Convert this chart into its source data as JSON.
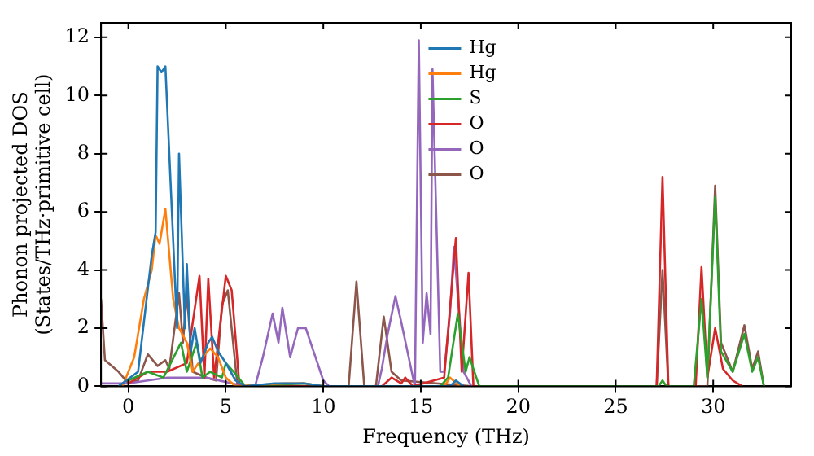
{
  "chart_data": {
    "type": "line",
    "xlabel": "Frequency (THz)",
    "ylabel": "Phonon projected DOS\n(States/THz·primitive cell)",
    "xlim": [
      -1.4,
      34
    ],
    "ylim": [
      0,
      12.5
    ],
    "xticks": [
      0,
      5,
      10,
      15,
      20,
      25,
      30
    ],
    "yticks": [
      0,
      2,
      4,
      6,
      8,
      10,
      12
    ],
    "grid": false,
    "legend": "top center",
    "line_style": "solid",
    "marker": "none",
    "series": [
      {
        "name": "Hg",
        "color": "#1f77b4",
        "x": [
          -0.5,
          0.5,
          1.2,
          1.4,
          1.5,
          1.7,
          1.8,
          1.9,
          2.3,
          2.5,
          2.6,
          2.9,
          3.0,
          3.2,
          3.4,
          3.7,
          4.1,
          4.3,
          4.6,
          5.0,
          5.5,
          6.0,
          7.5,
          9.0,
          10.0,
          16.5,
          16.8,
          17.2
        ],
        "values": [
          0,
          0.5,
          4.5,
          5.3,
          11,
          10.8,
          10.9,
          11,
          5,
          2,
          8,
          2,
          4.2,
          1.2,
          2,
          0.8,
          1.5,
          1.7,
          1.2,
          0.8,
          0.2,
          0,
          0.1,
          0.1,
          0,
          0,
          0.2,
          0
        ]
      },
      {
        "name": "Hg",
        "color": "#ff7f0e",
        "x": [
          -0.3,
          0.3,
          0.8,
          1.2,
          1.4,
          1.6,
          1.9,
          2.3,
          2.6,
          3.0,
          3.3,
          3.8,
          4.2,
          4.6,
          5.0,
          5.5,
          8.0,
          9.0,
          10.0,
          16.2,
          16.5,
          17.0
        ],
        "values": [
          0,
          1,
          3,
          4,
          5.2,
          4.9,
          6.1,
          3,
          2,
          1.5,
          0.5,
          1,
          1.3,
          1,
          0.3,
          0,
          0.1,
          0.1,
          0,
          0,
          0.3,
          0
        ]
      },
      {
        "name": "S",
        "color": "#2ca02c",
        "x": [
          0,
          1.0,
          1.8,
          2.7,
          3.0,
          3.5,
          3.8,
          4.2,
          4.8,
          5.0,
          5.4,
          6.0,
          9.0,
          10.0,
          16.0,
          16.4,
          16.9,
          17.3,
          17.5,
          18.0,
          27.2,
          27.4,
          27.6,
          29.0,
          29.4,
          29.7,
          30.1,
          30.4,
          31.0,
          31.6,
          32.0,
          32.3,
          32.6
        ],
        "values": [
          0.2,
          0.5,
          0.3,
          1.5,
          0.5,
          1.5,
          0.3,
          0.5,
          0.3,
          0.8,
          0.5,
          0,
          0.1,
          0,
          0,
          0.3,
          2.5,
          0.5,
          1,
          0,
          0,
          0.2,
          0,
          0,
          3,
          0.3,
          6.5,
          1.2,
          0.5,
          1.8,
          0.5,
          1,
          0
        ]
      },
      {
        "name": "O",
        "color": "#d62728",
        "x": [
          0,
          1.0,
          2.0,
          3.0,
          3.65,
          3.9,
          4.1,
          4.4,
          5.0,
          5.3,
          5.7,
          13.0,
          13.5,
          14.0,
          14.2,
          14.6,
          16.2,
          16.8,
          17.1,
          17.45,
          17.7,
          27.1,
          27.4,
          27.7,
          29.1,
          29.4,
          29.7,
          30.1,
          30.5,
          31.0,
          31.5
        ],
        "values": [
          0.1,
          0.5,
          0.5,
          0.8,
          3.8,
          0.3,
          3.7,
          0.3,
          3.8,
          3.3,
          0,
          0,
          0.3,
          0.1,
          0.3,
          0,
          0.3,
          5.1,
          0.5,
          3.9,
          0,
          0,
          7.2,
          0,
          0,
          4.1,
          0.3,
          2,
          0.6,
          0.2,
          0
        ]
      },
      {
        "name": "O",
        "color": "#9467bd",
        "x": [
          -1.4,
          0,
          2.0,
          4.0,
          6.0,
          6.5,
          6.9,
          7.4,
          7.7,
          7.9,
          8.3,
          8.7,
          9.1,
          9.5,
          10.0,
          10.3,
          12.8,
          13.0,
          13.3,
          13.7,
          14.0,
          14.6,
          14.7,
          14.9,
          15.1,
          15.3,
          15.5,
          15.6,
          16.0,
          16.2,
          16.5,
          16.7,
          17.2,
          17.6
        ],
        "values": [
          0.1,
          0.1,
          0.3,
          0.3,
          0,
          0,
          1,
          2.5,
          1.5,
          2.7,
          1,
          2,
          2,
          1.2,
          0.2,
          0,
          0,
          0.6,
          1.8,
          3.1,
          2.2,
          0.3,
          0,
          11.9,
          1.5,
          3.2,
          1.8,
          10.9,
          0.5,
          0.5,
          2.5,
          4.8,
          0.5,
          0
        ]
      },
      {
        "name": "O",
        "color": "#8c564b",
        "x": [
          -1.4,
          -1.2,
          -0.5,
          0,
          0.5,
          1.0,
          1.5,
          1.9,
          2.1,
          2.6,
          2.8,
          3.0,
          3.3,
          4.0,
          4.5,
          4.8,
          5.1,
          5.6,
          11.3,
          11.7,
          12.1,
          12.7,
          13.1,
          13.5,
          14.0,
          17.6,
          27.1,
          27.4,
          27.7,
          29.7,
          30.1,
          30.4,
          31.0,
          31.6,
          32.0,
          32.3,
          32.6
        ],
        "values": [
          3,
          0.9,
          0.5,
          0.1,
          0.2,
          1.1,
          0.7,
          0.9,
          0.6,
          3.2,
          1.5,
          3.2,
          0.5,
          0.3,
          0.2,
          2.8,
          3.3,
          0,
          0,
          3.6,
          0,
          0,
          2.4,
          0.5,
          0.2,
          0,
          0,
          4,
          0,
          0,
          6.9,
          1.5,
          0.5,
          2.1,
          0.6,
          1.2,
          0
        ]
      }
    ]
  }
}
